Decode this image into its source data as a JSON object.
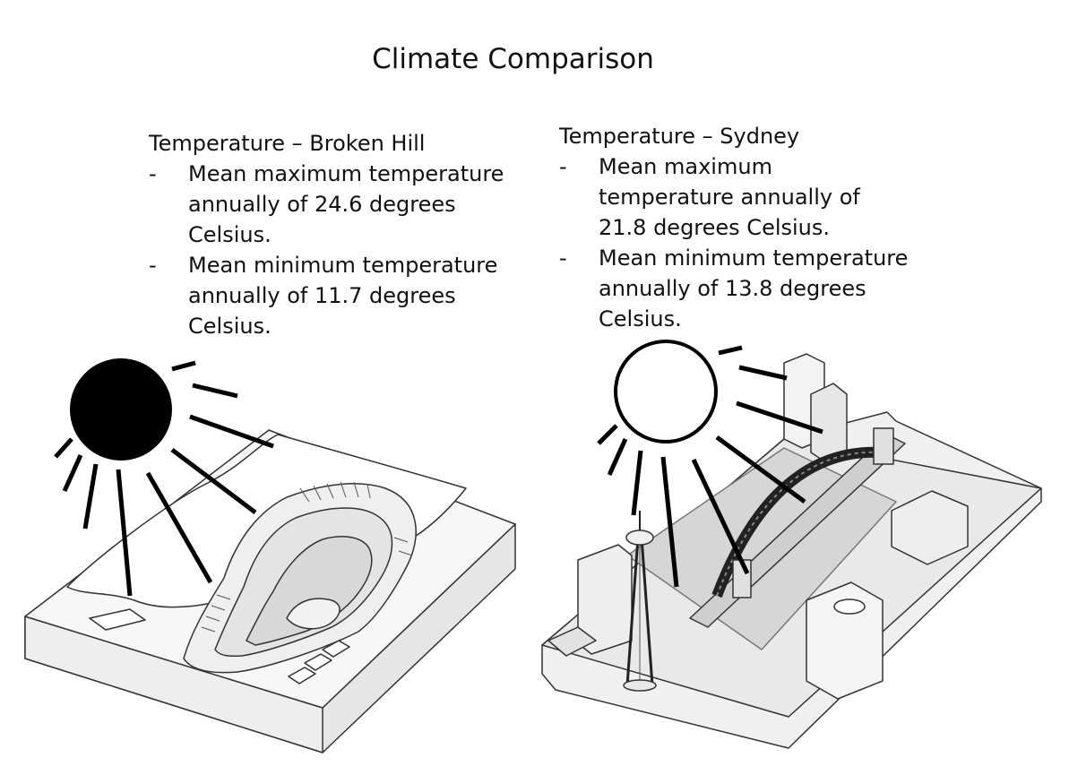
{
  "title": "Climate Comparison",
  "left_panel": {
    "heading": "Temperature – Broken Hill",
    "bullets": [
      "Mean maximum temperature annually of 24.6 degrees Celsius.",
      "Mean minimum temperature annually of 11.7 degrees Celsius."
    ],
    "sun": "filled-black",
    "scene": "open-cut-mine-model"
  },
  "right_panel": {
    "heading": "Temperature – Sydney",
    "bullets": [
      "Mean maximum temperature annually of 21.8 degrees Celsius.",
      "Mean minimum temperature annually of 13.8 degrees Celsius."
    ],
    "sun": "outline-white",
    "scene": "harbour-bridge-and-tower-model"
  },
  "bullet_marker": "-"
}
